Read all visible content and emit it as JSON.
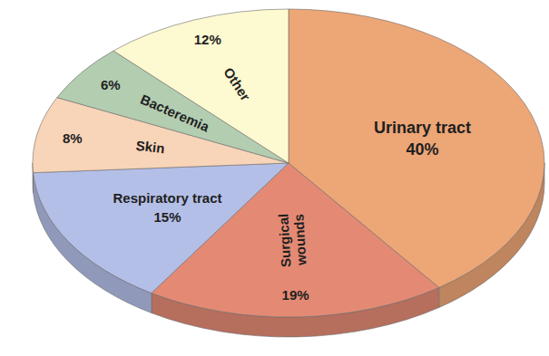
{
  "chart_data": {
    "type": "pie",
    "categories": [
      "Urinary tract",
      "Surgical wounds",
      "Respiratory tract",
      "Skin",
      "Bacteremia",
      "Other"
    ],
    "values": [
      40,
      19,
      15,
      8,
      6,
      12
    ],
    "value_labels": [
      "40%",
      "19%",
      "15%",
      "8%",
      "6%",
      "12%"
    ],
    "colors": [
      "#eda676",
      "#e48a74",
      "#b4bfe8",
      "#f8d4b8",
      "#b3cdb1",
      "#fdf9d1"
    ],
    "data_labels": true
  }
}
